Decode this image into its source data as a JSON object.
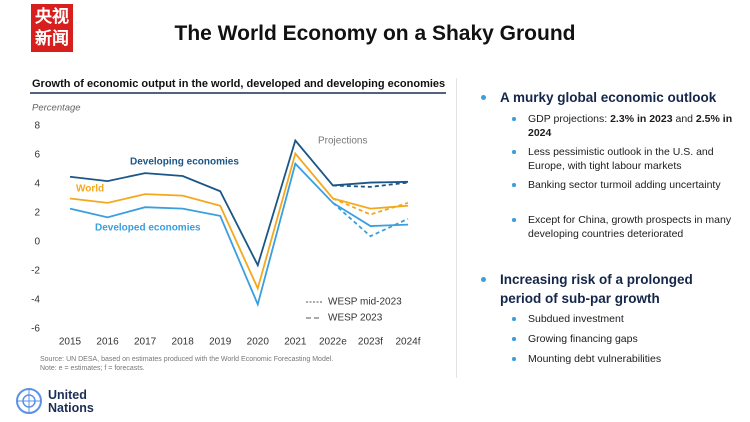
{
  "logo": [
    "央视",
    "新闻"
  ],
  "header": {
    "title": "The World Economy on a Shaky Ground"
  },
  "chart_data": {
    "type": "line",
    "title": "Growth of economic output in the world, developed and developing economies",
    "y_label": "Percentage",
    "annotation": "Projections",
    "categories": [
      "2015",
      "2016",
      "2017",
      "2018",
      "2019",
      "2020",
      "2021",
      "2022e",
      "2023f",
      "2024f"
    ],
    "series": [
      {
        "name": "Developing economies",
        "color": "#1b5687",
        "values": [
          4.5,
          4.2,
          4.75,
          4.55,
          3.5,
          -1.6,
          7.0,
          3.9,
          4.1,
          4.15
        ],
        "wesp_2023_values": [
          null,
          null,
          null,
          null,
          null,
          null,
          null,
          3.9,
          3.8,
          4.1
        ]
      },
      {
        "name": "World",
        "color": "#f4a81d",
        "values": [
          3.0,
          2.7,
          3.3,
          3.2,
          2.5,
          -3.2,
          6.1,
          3.0,
          2.3,
          2.5
        ],
        "wesp_2023_values": [
          null,
          null,
          null,
          null,
          null,
          null,
          null,
          3.0,
          1.9,
          2.7
        ]
      },
      {
        "name": "Developed economies",
        "color": "#3a9fdf",
        "values": [
          2.3,
          1.7,
          2.4,
          2.3,
          1.8,
          -4.3,
          5.4,
          2.7,
          1.1,
          1.2
        ],
        "wesp_2023_values": [
          null,
          null,
          null,
          null,
          null,
          null,
          null,
          2.7,
          0.4,
          1.6
        ]
      }
    ],
    "legend": [
      "WESP mid-2023",
      "WESP 2023"
    ],
    "ylim": [
      -6,
      8
    ],
    "yticks": [
      -6,
      -4,
      -2,
      0,
      2,
      4,
      6,
      8
    ],
    "grid": false,
    "source": [
      "Source: UN DESA, based on estimates produced with the World Economic Forecasting Model.",
      "Note: e = estimates; f = forecasts."
    ]
  },
  "panel": {
    "sections": [
      {
        "heading": "A murky global economic outlook",
        "items": [
          [
            "GDP projections: ",
            "2.3% in 2023",
            " and ",
            "2.5% in 2024"
          ],
          [
            "Less pessimistic outlook in the U.S. and Europe, with tight labour markets"
          ],
          [
            "Banking sector turmoil adding uncertainty"
          ],
          [
            "Except for China, growth prospects in many developing countries deteriorated"
          ]
        ]
      },
      {
        "heading": "Increasing risk of a prolonged period of sub-par growth",
        "items": [
          [
            "Subdued investment"
          ],
          [
            "Growing financing gaps"
          ],
          [
            "Mounting debt vulnerabilities"
          ]
        ]
      }
    ]
  },
  "footer": {
    "org": [
      "United",
      "Nations"
    ]
  }
}
